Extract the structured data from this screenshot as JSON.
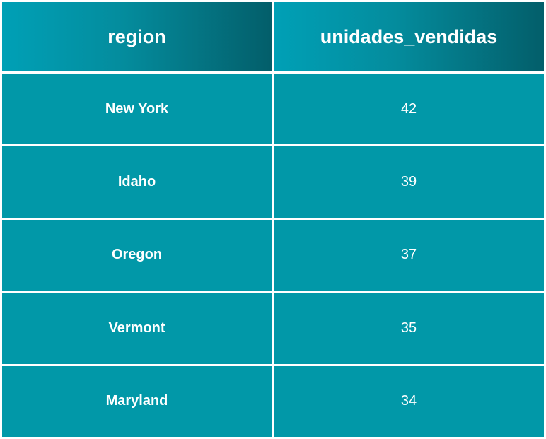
{
  "chart_data": {
    "type": "table",
    "columns": [
      "region",
      "unidades_vendidas"
    ],
    "rows": [
      {
        "region": "New York",
        "unidades_vendidas": "42"
      },
      {
        "region": "Idaho",
        "unidades_vendidas": "39"
      },
      {
        "region": "Oregon",
        "unidades_vendidas": "37"
      },
      {
        "region": "Vermont",
        "unidades_vendidas": "35"
      },
      {
        "region": "Maryland",
        "unidades_vendidas": "34"
      }
    ]
  },
  "colors": {
    "header_start": "#00a0b6",
    "header_end": "#035e6a",
    "cell": "#0198a8",
    "text": "#ffffff",
    "grid": "#ffffff"
  }
}
